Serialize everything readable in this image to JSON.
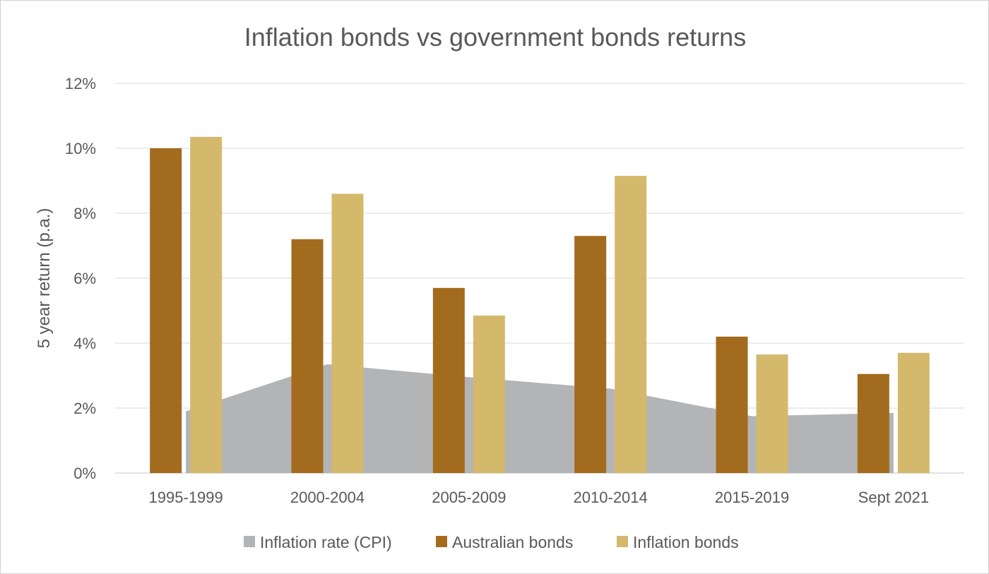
{
  "chart_data": {
    "type": "bar",
    "title": "Inflation bonds vs government bonds returns",
    "xlabel": "",
    "ylabel": "5 year return (p.a.)",
    "ylim": [
      0,
      12
    ],
    "y_ticks": [
      "0%",
      "2%",
      "4%",
      "6%",
      "8%",
      "10%",
      "12%"
    ],
    "y_tick_values": [
      0,
      2,
      4,
      6,
      8,
      10,
      12
    ],
    "grid": true,
    "legend_position": "bottom",
    "categories": [
      "1995-1999",
      "2000-2004",
      "2005-2009",
      "2010-2014",
      "2015-2019",
      "Sept 2021"
    ],
    "series": [
      {
        "name": "Inflation rate (CPI)",
        "kind": "area",
        "color": "#b3b4b5",
        "values": [
          1.9,
          3.35,
          2.95,
          2.6,
          1.75,
          1.85
        ]
      },
      {
        "name": "Australian bonds",
        "kind": "bar",
        "color": "#a36b1d",
        "values": [
          10.0,
          7.2,
          5.7,
          7.3,
          4.2,
          3.05
        ]
      },
      {
        "name": "Inflation bonds",
        "kind": "bar",
        "color": "#d4b96d",
        "values": [
          10.35,
          8.6,
          4.85,
          9.15,
          3.65,
          3.7
        ]
      }
    ]
  }
}
